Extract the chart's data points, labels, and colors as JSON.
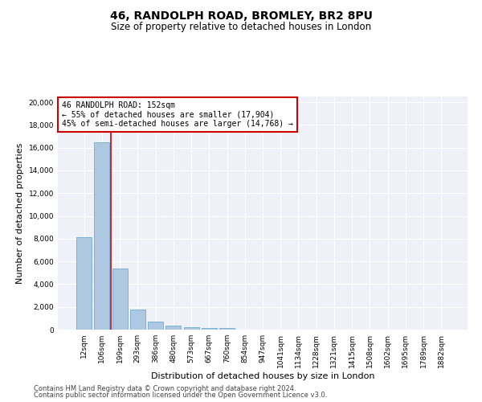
{
  "title1": "46, RANDOLPH ROAD, BROMLEY, BR2 8PU",
  "title2": "Size of property relative to detached houses in London",
  "xlabel": "Distribution of detached houses by size in London",
  "ylabel": "Number of detached properties",
  "categories": [
    "12sqm",
    "106sqm",
    "199sqm",
    "293sqm",
    "386sqm",
    "480sqm",
    "573sqm",
    "667sqm",
    "760sqm",
    "854sqm",
    "947sqm",
    "1041sqm",
    "1134sqm",
    "1228sqm",
    "1321sqm",
    "1415sqm",
    "1508sqm",
    "1602sqm",
    "1695sqm",
    "1789sqm",
    "1882sqm"
  ],
  "values": [
    8100,
    16500,
    5400,
    1750,
    700,
    320,
    210,
    175,
    120,
    0,
    0,
    0,
    0,
    0,
    0,
    0,
    0,
    0,
    0,
    0,
    0
  ],
  "bar_color": "#adc8e0",
  "bar_edgecolor": "#6aadd5",
  "vline_color": "#cc0000",
  "annotation_text": "46 RANDOLPH ROAD: 152sqm\n← 55% of detached houses are smaller (17,904)\n45% of semi-detached houses are larger (14,768) →",
  "annotation_box_color": "#ffffff",
  "annotation_box_edgecolor": "#cc0000",
  "ylim": [
    0,
    20500
  ],
  "yticks": [
    0,
    2000,
    4000,
    6000,
    8000,
    10000,
    12000,
    14000,
    16000,
    18000,
    20000
  ],
  "footer1": "Contains HM Land Registry data © Crown copyright and database right 2024.",
  "footer2": "Contains public sector information licensed under the Open Government Licence v3.0.",
  "bg_color": "#eef2f8",
  "title1_fontsize": 10,
  "title2_fontsize": 8.5,
  "xlabel_fontsize": 8,
  "ylabel_fontsize": 8,
  "tick_fontsize": 6.5,
  "annot_fontsize": 7,
  "footer_fontsize": 6
}
